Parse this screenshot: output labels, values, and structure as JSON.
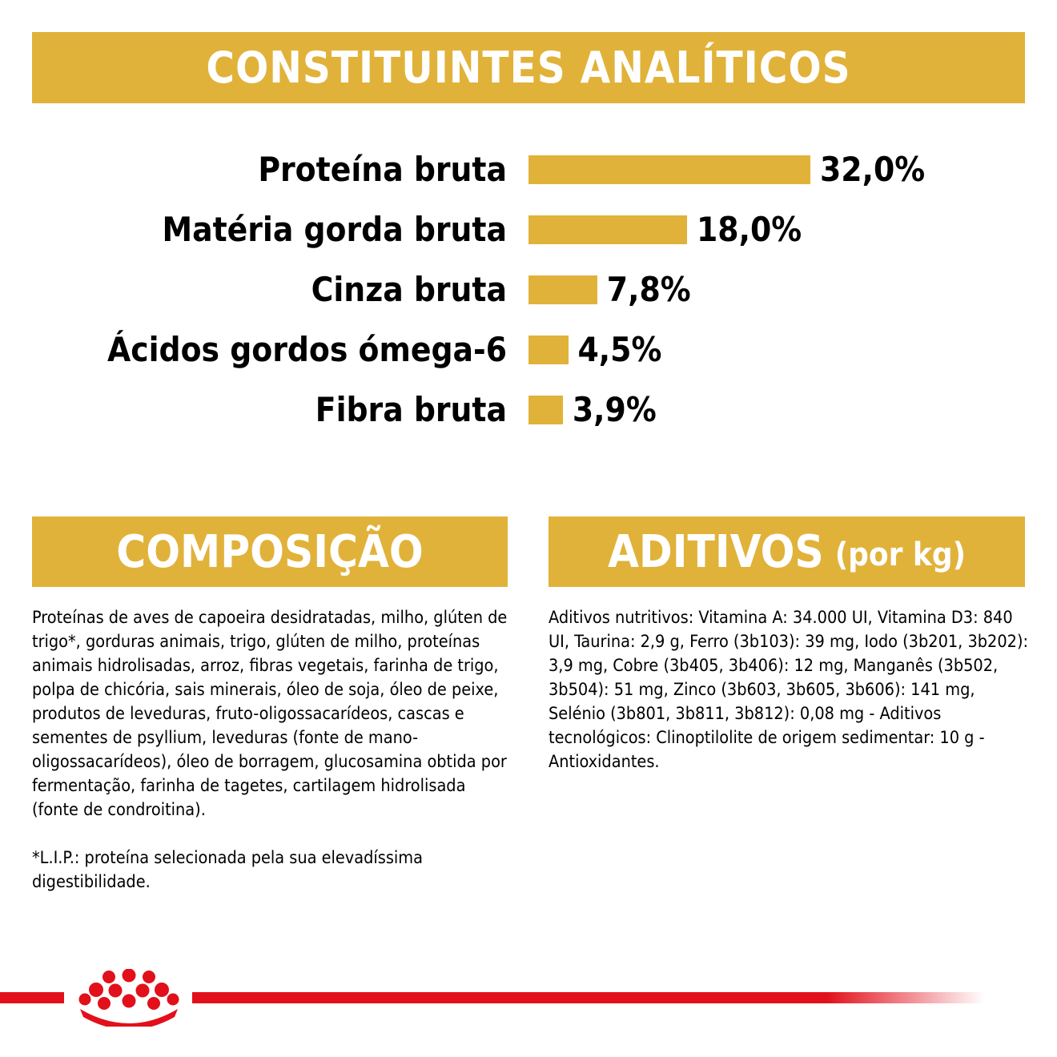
{
  "headers": {
    "analiticos": "CONSTITUINTES ANALÍTICOS",
    "composicao": "COMPOSIÇÃO",
    "aditivos": "ADITIVOS",
    "aditivos_sub": "(por kg)"
  },
  "chart_data": {
    "type": "bar",
    "orientation": "horizontal",
    "categories": [
      "Proteína bruta",
      "Matéria gorda bruta",
      "Cinza bruta",
      "Ácidos gordos ómega-6",
      "Fibra bruta"
    ],
    "values": [
      32.0,
      18.0,
      7.8,
      4.5,
      3.9
    ],
    "value_labels": [
      "32,0%",
      "18,0%",
      "7,8%",
      "4,5%",
      "3,9%"
    ],
    "title": "",
    "xlabel": "",
    "ylabel": "",
    "xlim": [
      0,
      32
    ],
    "grid": false,
    "legend": "none",
    "bar_color": "#E1B23A"
  },
  "composicao": {
    "text": "Proteínas de aves de capoeira desidratadas, milho, glúten de trigo*, gorduras animais, trigo, glúten de milho, proteínas animais hidrolisadas, arroz, fibras vegetais, farinha de trigo, polpa de chicória, sais minerais, óleo de soja, óleo de peixe, produtos de leveduras, fruto-oligossacarídeos, cascas e sementes de psyllium, leveduras (fonte de mano-oligossacarídeos), óleo de borragem, glucosamina obtida por fermentação, farinha de tagetes, cartilagem hidrolisada (fonte de condroitina).",
    "note": "*L.I.P.: proteína selecionada pela sua elevadíssima digestibilidade."
  },
  "aditivos": {
    "text": "Aditivos nutritivos: Vitamina A: 34.000 UI, Vitamina D3: 840 UI, Taurina: 2,9 g, Ferro (3b103): 39 mg, Iodo (3b201, 3b202): 3,9 mg, Cobre (3b405, 3b406): 12 mg, Manganês (3b502, 3b504): 51 mg, Zinco (3b603, 3b605, 3b606): 141 mg, Selénio (3b801, 3b811, 3b812): 0,08 mg - Aditivos tecnológicos: Clinoptilolite de origem sedimentar: 10 g - Antioxidantes."
  },
  "colors": {
    "accent": "#E1B23A",
    "brand_red": "#E2101A"
  },
  "logo": {
    "icon": "royal-canin-crown-icon"
  }
}
